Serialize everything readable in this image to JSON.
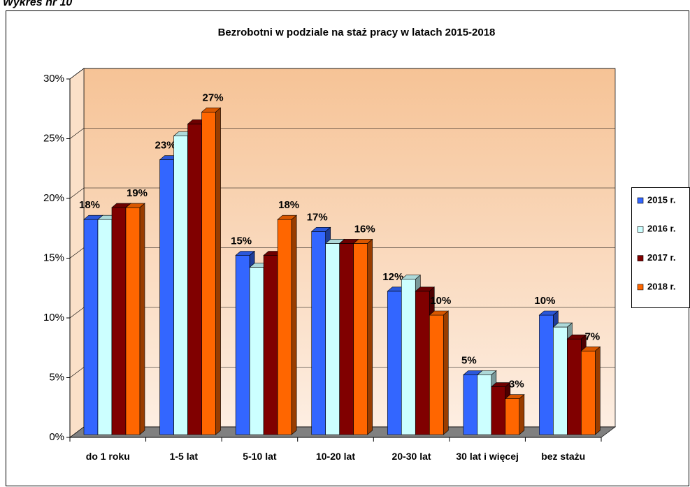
{
  "page_header": "Wykres nr 10",
  "chart_data": {
    "type": "bar3d",
    "title": "Bezrobotni w podziale na staż pracy w latach 2015-2018",
    "categories": [
      "do 1 roku",
      "1-5 lat",
      "5-10 lat",
      "10-20 lat",
      "20-30 lat",
      "30 lat i więcej",
      "bez stażu"
    ],
    "series": [
      {
        "name": "2015 r.",
        "color": "#3366ff",
        "values": [
          18,
          23,
          15,
          17,
          12,
          5,
          10
        ],
        "value_labels": [
          "18%",
          "23%",
          "15%",
          "17%",
          "12%",
          "5%",
          "10%"
        ]
      },
      {
        "name": "2016 r.",
        "color": "#ccffff",
        "values": [
          18,
          25,
          14,
          16,
          13,
          5,
          9
        ]
      },
      {
        "name": "2017 r.",
        "color": "#800000",
        "values": [
          19,
          26,
          15,
          16,
          12,
          4,
          8
        ]
      },
      {
        "name": "2018 r.",
        "color": "#ff6600",
        "values": [
          19,
          27,
          18,
          16,
          10,
          3,
          7
        ],
        "value_labels": [
          "19%",
          "27%",
          "18%",
          "16%",
          "10%",
          "3%",
          "7%"
        ]
      }
    ],
    "ylim": [
      0,
      30
    ],
    "yticks": [
      {
        "value": 0,
        "label": "0%"
      },
      {
        "value": 5,
        "label": "5%"
      },
      {
        "value": 10,
        "label": "10%"
      },
      {
        "value": 15,
        "label": "15%"
      },
      {
        "value": 20,
        "label": "20%"
      },
      {
        "value": 25,
        "label": "25%"
      },
      {
        "value": 30,
        "label": "30%"
      }
    ],
    "grid": true,
    "legend": "right"
  }
}
